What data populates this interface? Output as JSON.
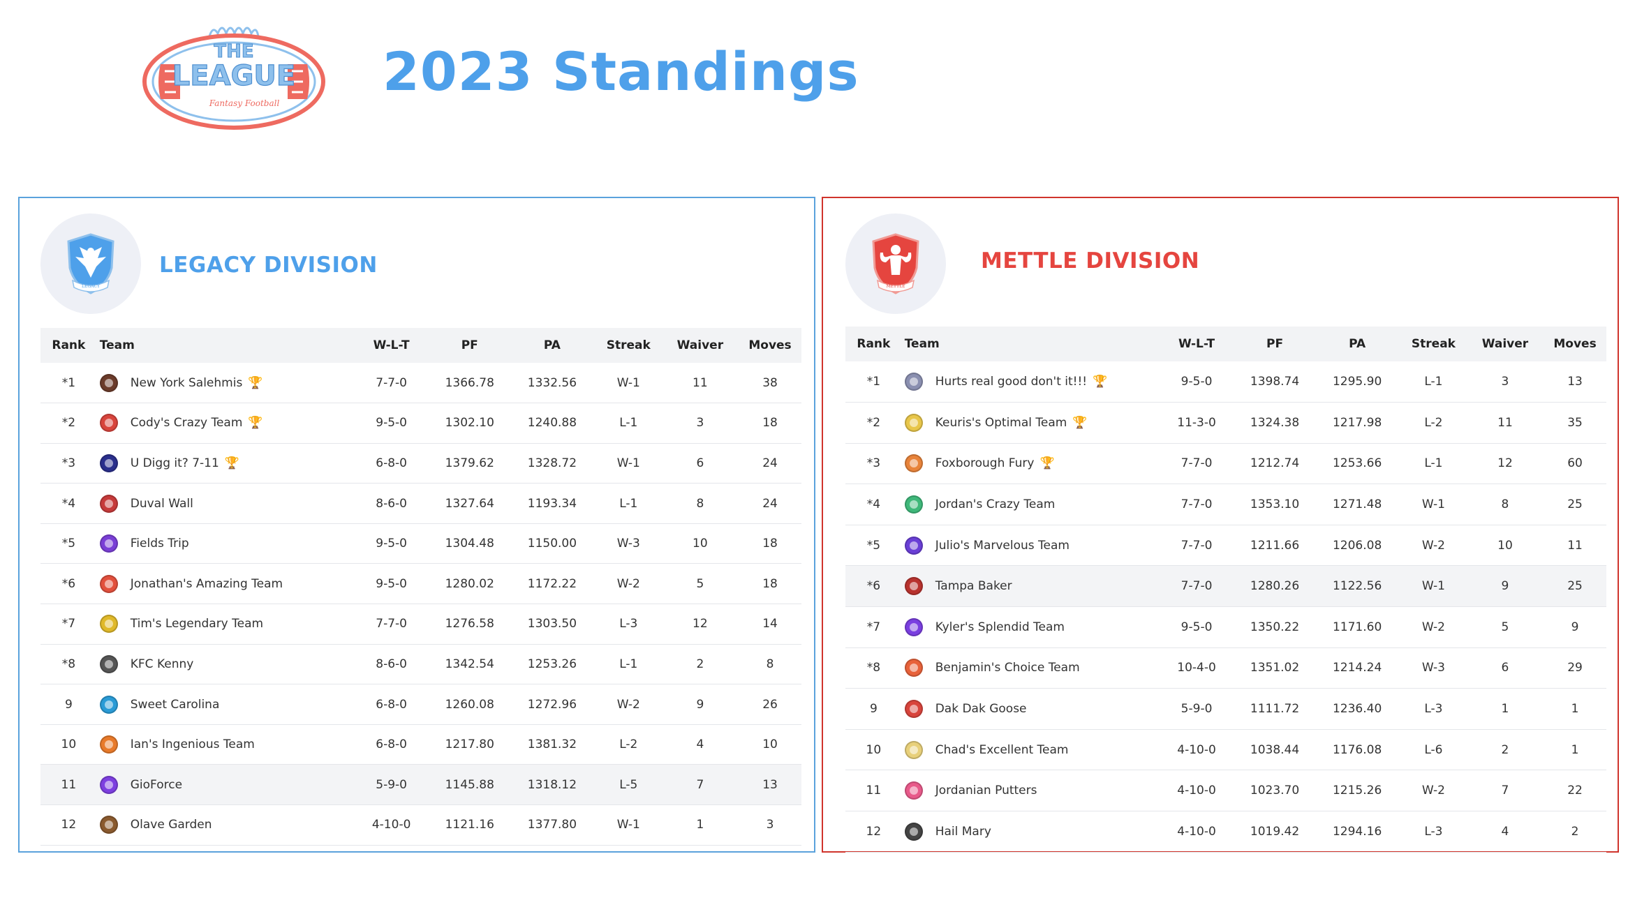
{
  "header": {
    "logo_text_1": "THE",
    "logo_text_2": "LEAGUE",
    "logo_text_3": "Fantasy Football",
    "title": "2023 Standings"
  },
  "colors": {
    "legacy": "#4ea0ea",
    "mettle": "#e5453f"
  },
  "columns": [
    "Rank",
    "Team",
    "W-L-T",
    "PF",
    "PA",
    "Streak",
    "Waiver",
    "Moves"
  ],
  "legacy": {
    "title": "LEGACY DIVISION",
    "crest_label": "LEGACY",
    "rows": [
      {
        "rank": "*1",
        "team": "New York Salehmis",
        "icon": "#6b3b2a",
        "trophy": "gold",
        "wlt": "7-7-0",
        "pf": "1366.78",
        "pa": "1332.56",
        "streak": "W-1",
        "waiver": "11",
        "moves": "38"
      },
      {
        "rank": "*2",
        "team": "Cody's Crazy Team",
        "icon": "#d8443c",
        "trophy": "silver",
        "wlt": "9-5-0",
        "pf": "1302.10",
        "pa": "1240.88",
        "streak": "L-1",
        "waiver": "3",
        "moves": "18"
      },
      {
        "rank": "*3",
        "team": "U Digg it? 7-11",
        "icon": "#2a2f8c",
        "trophy": "bronze",
        "wlt": "6-8-0",
        "pf": "1379.62",
        "pa": "1328.72",
        "streak": "W-1",
        "waiver": "6",
        "moves": "24"
      },
      {
        "rank": "*4",
        "team": "Duval Wall",
        "icon": "#c63a3a",
        "trophy": "",
        "wlt": "8-6-0",
        "pf": "1327.64",
        "pa": "1193.34",
        "streak": "L-1",
        "waiver": "8",
        "moves": "24"
      },
      {
        "rank": "*5",
        "team": "Fields Trip",
        "icon": "#7a3fd6",
        "trophy": "",
        "wlt": "9-5-0",
        "pf": "1304.48",
        "pa": "1150.00",
        "streak": "W-3",
        "waiver": "10",
        "moves": "18"
      },
      {
        "rank": "*6",
        "team": "Jonathan's Amazing Team",
        "icon": "#e2503d",
        "trophy": "",
        "wlt": "9-5-0",
        "pf": "1280.02",
        "pa": "1172.22",
        "streak": "W-2",
        "waiver": "5",
        "moves": "18"
      },
      {
        "rank": "*7",
        "team": "Tim's Legendary Team",
        "icon": "#e0b92a",
        "trophy": "",
        "wlt": "7-7-0",
        "pf": "1276.58",
        "pa": "1303.50",
        "streak": "L-3",
        "waiver": "12",
        "moves": "14"
      },
      {
        "rank": "*8",
        "team": "KFC Kenny",
        "icon": "#555555",
        "trophy": "",
        "wlt": "8-6-0",
        "pf": "1342.54",
        "pa": "1253.26",
        "streak": "L-1",
        "waiver": "2",
        "moves": "8"
      },
      {
        "rank": "9",
        "team": "Sweet Carolina",
        "icon": "#2a9bd6",
        "trophy": "",
        "wlt": "6-8-0",
        "pf": "1260.08",
        "pa": "1272.96",
        "streak": "W-2",
        "waiver": "9",
        "moves": "26"
      },
      {
        "rank": "10",
        "team": "Ian's Ingenious Team",
        "icon": "#e87a2a",
        "trophy": "",
        "wlt": "6-8-0",
        "pf": "1217.80",
        "pa": "1381.32",
        "streak": "L-2",
        "waiver": "4",
        "moves": "10"
      },
      {
        "rank": "11",
        "team": "GioForce",
        "icon": "#7d3fe0",
        "trophy": "",
        "wlt": "5-9-0",
        "pf": "1145.88",
        "pa": "1318.12",
        "streak": "L-5",
        "waiver": "7",
        "moves": "13"
      },
      {
        "rank": "12",
        "team": "Olave Garden",
        "icon": "#8a5a2e",
        "trophy": "",
        "wlt": "4-10-0",
        "pf": "1121.16",
        "pa": "1377.80",
        "streak": "W-1",
        "waiver": "1",
        "moves": "3"
      }
    ]
  },
  "mettle": {
    "title": "METTLE DIVISION",
    "crest_label": "METTLE",
    "rows": [
      {
        "rank": "*1",
        "team": "Hurts real good don't it!!!",
        "icon": "#8a8fb0",
        "trophy": "gold",
        "wlt": "9-5-0",
        "pf": "1398.74",
        "pa": "1295.90",
        "streak": "L-1",
        "waiver": "3",
        "moves": "13"
      },
      {
        "rank": "*2",
        "team": "Keuris's Optimal Team",
        "icon": "#e8c64a",
        "trophy": "silver",
        "wlt": "11-3-0",
        "pf": "1324.38",
        "pa": "1217.98",
        "streak": "L-2",
        "waiver": "11",
        "moves": "35"
      },
      {
        "rank": "*3",
        "team": "Foxborough Fury",
        "icon": "#e8833a",
        "trophy": "bronze",
        "wlt": "7-7-0",
        "pf": "1212.74",
        "pa": "1253.66",
        "streak": "L-1",
        "waiver": "12",
        "moves": "60"
      },
      {
        "rank": "*4",
        "team": "Jordan's Crazy Team",
        "icon": "#3fb87a",
        "trophy": "",
        "wlt": "7-7-0",
        "pf": "1353.10",
        "pa": "1271.48",
        "streak": "W-1",
        "waiver": "8",
        "moves": "25"
      },
      {
        "rank": "*5",
        "team": "Julio's Marvelous Team",
        "icon": "#6a3fd6",
        "trophy": "",
        "wlt": "7-7-0",
        "pf": "1211.66",
        "pa": "1206.08",
        "streak": "W-2",
        "waiver": "10",
        "moves": "11"
      },
      {
        "rank": "*6",
        "team": "Tampa Baker",
        "icon": "#b8322e",
        "trophy": "",
        "wlt": "7-7-0",
        "pf": "1280.26",
        "pa": "1122.56",
        "streak": "W-1",
        "waiver": "9",
        "moves": "25"
      },
      {
        "rank": "*7",
        "team": "Kyler's Splendid Team",
        "icon": "#7a3fe0",
        "trophy": "",
        "wlt": "9-5-0",
        "pf": "1350.22",
        "pa": "1171.60",
        "streak": "W-2",
        "waiver": "5",
        "moves": "9"
      },
      {
        "rank": "*8",
        "team": "Benjamin's Choice Team",
        "icon": "#e8623a",
        "trophy": "",
        "wlt": "10-4-0",
        "pf": "1351.02",
        "pa": "1214.24",
        "streak": "W-3",
        "waiver": "6",
        "moves": "29"
      },
      {
        "rank": "9",
        "team": "Dak Dak Goose",
        "icon": "#d8443c",
        "trophy": "",
        "wlt": "5-9-0",
        "pf": "1111.72",
        "pa": "1236.40",
        "streak": "L-3",
        "waiver": "1",
        "moves": "1"
      },
      {
        "rank": "10",
        "team": "Chad's Excellent Team",
        "icon": "#e8d07a",
        "trophy": "",
        "wlt": "4-10-0",
        "pf": "1038.44",
        "pa": "1176.08",
        "streak": "L-6",
        "waiver": "2",
        "moves": "1"
      },
      {
        "rank": "11",
        "team": "Jordanian Putters",
        "icon": "#e85a8a",
        "trophy": "",
        "wlt": "4-10-0",
        "pf": "1023.70",
        "pa": "1215.26",
        "streak": "W-2",
        "waiver": "7",
        "moves": "22"
      },
      {
        "rank": "12",
        "team": "Hail Mary",
        "icon": "#444444",
        "trophy": "",
        "wlt": "4-10-0",
        "pf": "1019.42",
        "pa": "1294.16",
        "streak": "L-3",
        "waiver": "4",
        "moves": "2"
      }
    ]
  }
}
